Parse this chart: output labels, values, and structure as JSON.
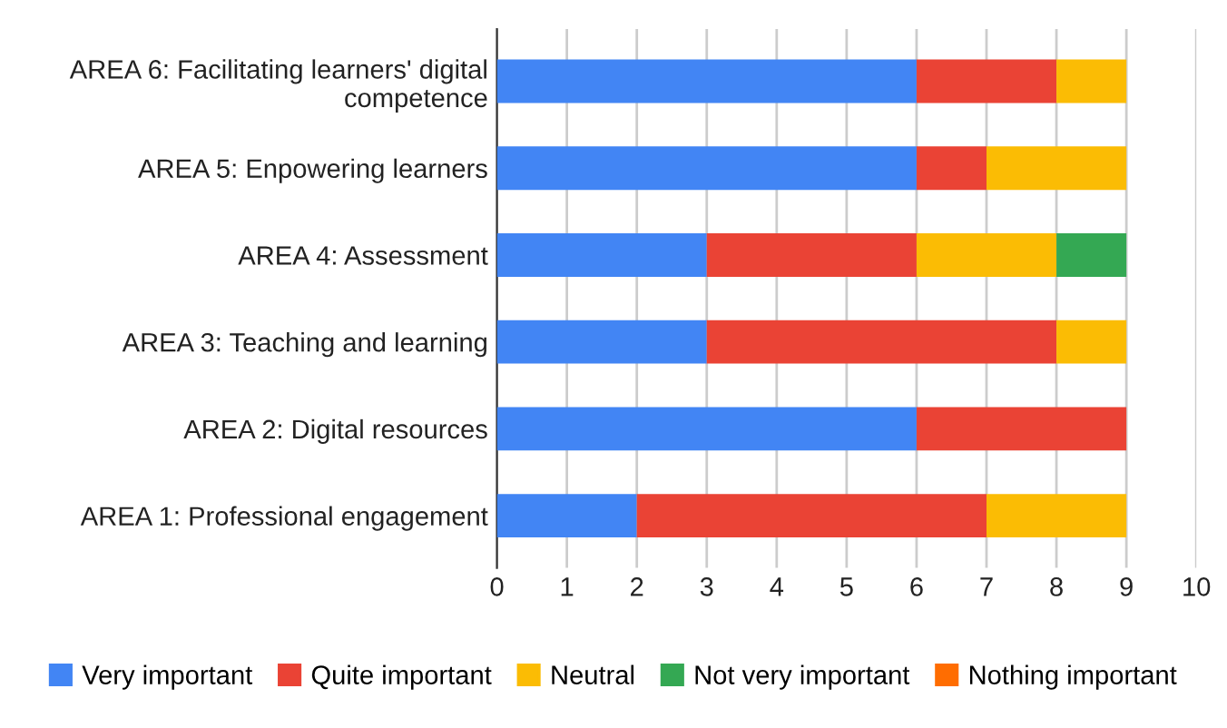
{
  "chart_data": {
    "type": "bar",
    "orientation": "horizontal",
    "stacked": true,
    "categories": [
      "AREA 6: Facilitating learners' digital\ncompetence",
      "AREA 5: Enpowering learners",
      "AREA 4: Assessment",
      "AREA 3: Teaching and learning",
      "AREA 2: Digital resources",
      "AREA 1: Professional engagement"
    ],
    "series": [
      {
        "name": "Very important",
        "color": "#4285f4",
        "values": [
          6,
          6,
          3,
          3,
          6,
          2
        ]
      },
      {
        "name": "Quite important",
        "color": "#ea4335",
        "values": [
          2,
          1,
          3,
          5,
          3,
          5
        ]
      },
      {
        "name": "Neutral",
        "color": "#fbbc04",
        "values": [
          1,
          2,
          2,
          1,
          0,
          2
        ]
      },
      {
        "name": "Not very important",
        "color": "#34a853",
        "values": [
          0,
          0,
          1,
          0,
          0,
          0
        ]
      },
      {
        "name": "Nothing important",
        "color": "#ff6d01",
        "values": [
          0,
          0,
          0,
          0,
          0,
          0
        ]
      }
    ],
    "xlim": [
      0,
      10
    ],
    "xticks": [
      0,
      1,
      2,
      3,
      4,
      5,
      6,
      7,
      8,
      9,
      10
    ],
    "grid": "x",
    "legend": "bottom"
  }
}
